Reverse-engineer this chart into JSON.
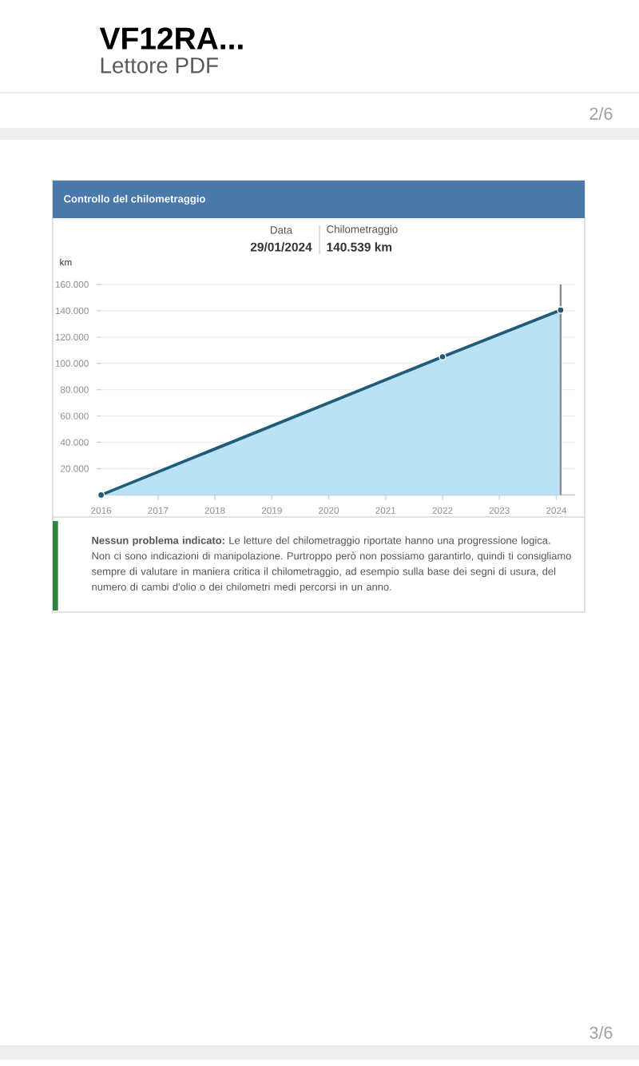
{
  "chart_data": {
    "type": "area",
    "title": "Controllo del chilometraggio",
    "ylabel": "km",
    "x": [
      "2016-01",
      "2022-01",
      "2024-01-29"
    ],
    "series": [
      {
        "color": "#1f5b7a",
        "marker": "circle",
        "values": [
          0,
          105000,
          140539
        ]
      }
    ],
    "xlim": [
      "2016-01",
      "2024-05"
    ],
    "xticks": [
      "2016",
      "2017",
      "2018",
      "2019",
      "2020",
      "2021",
      "2022",
      "2023",
      "2024"
    ],
    "ylim": [
      0,
      160000
    ],
    "yticks": [
      {
        "value": 0,
        "label": null
      },
      {
        "value": 20000,
        "label": "20.000"
      },
      {
        "value": 40000,
        "label": "40.000"
      },
      {
        "value": 60000,
        "label": "60.000"
      },
      {
        "value": 80000,
        "label": "80.000"
      },
      {
        "value": 100000,
        "label": "100.000"
      },
      {
        "value": 120000,
        "label": "120.000"
      },
      {
        "value": 140000,
        "label": "140.000"
      },
      {
        "value": 160000,
        "label": "160.000"
      }
    ],
    "grid": "y",
    "ref_lines": [
      {
        "axis": "x",
        "value": "2024-01-29",
        "color": "#8c8c8c"
      }
    ],
    "annotations": [
      "VF12RA...",
      "Lettore PDF",
      "2/6",
      "Data",
      "29/01/2024",
      "Chilometraggio",
      "140.539 km",
      "**Nessun problema indicato:** Le letture del chilometraggio riportate hanno una progressione logica. Non ci sono indicazioni di manipolazione. Purtroppo però non possiamo garantirlo, quindi ti consigliamo sempre di valutare in maniera critica il chilometraggio, ad esempio sulla base dei segni di usura, del numero di cambi d'olio o dei chilometri medi percorsi in un anno.",
      "3/6"
    ]
  }
}
